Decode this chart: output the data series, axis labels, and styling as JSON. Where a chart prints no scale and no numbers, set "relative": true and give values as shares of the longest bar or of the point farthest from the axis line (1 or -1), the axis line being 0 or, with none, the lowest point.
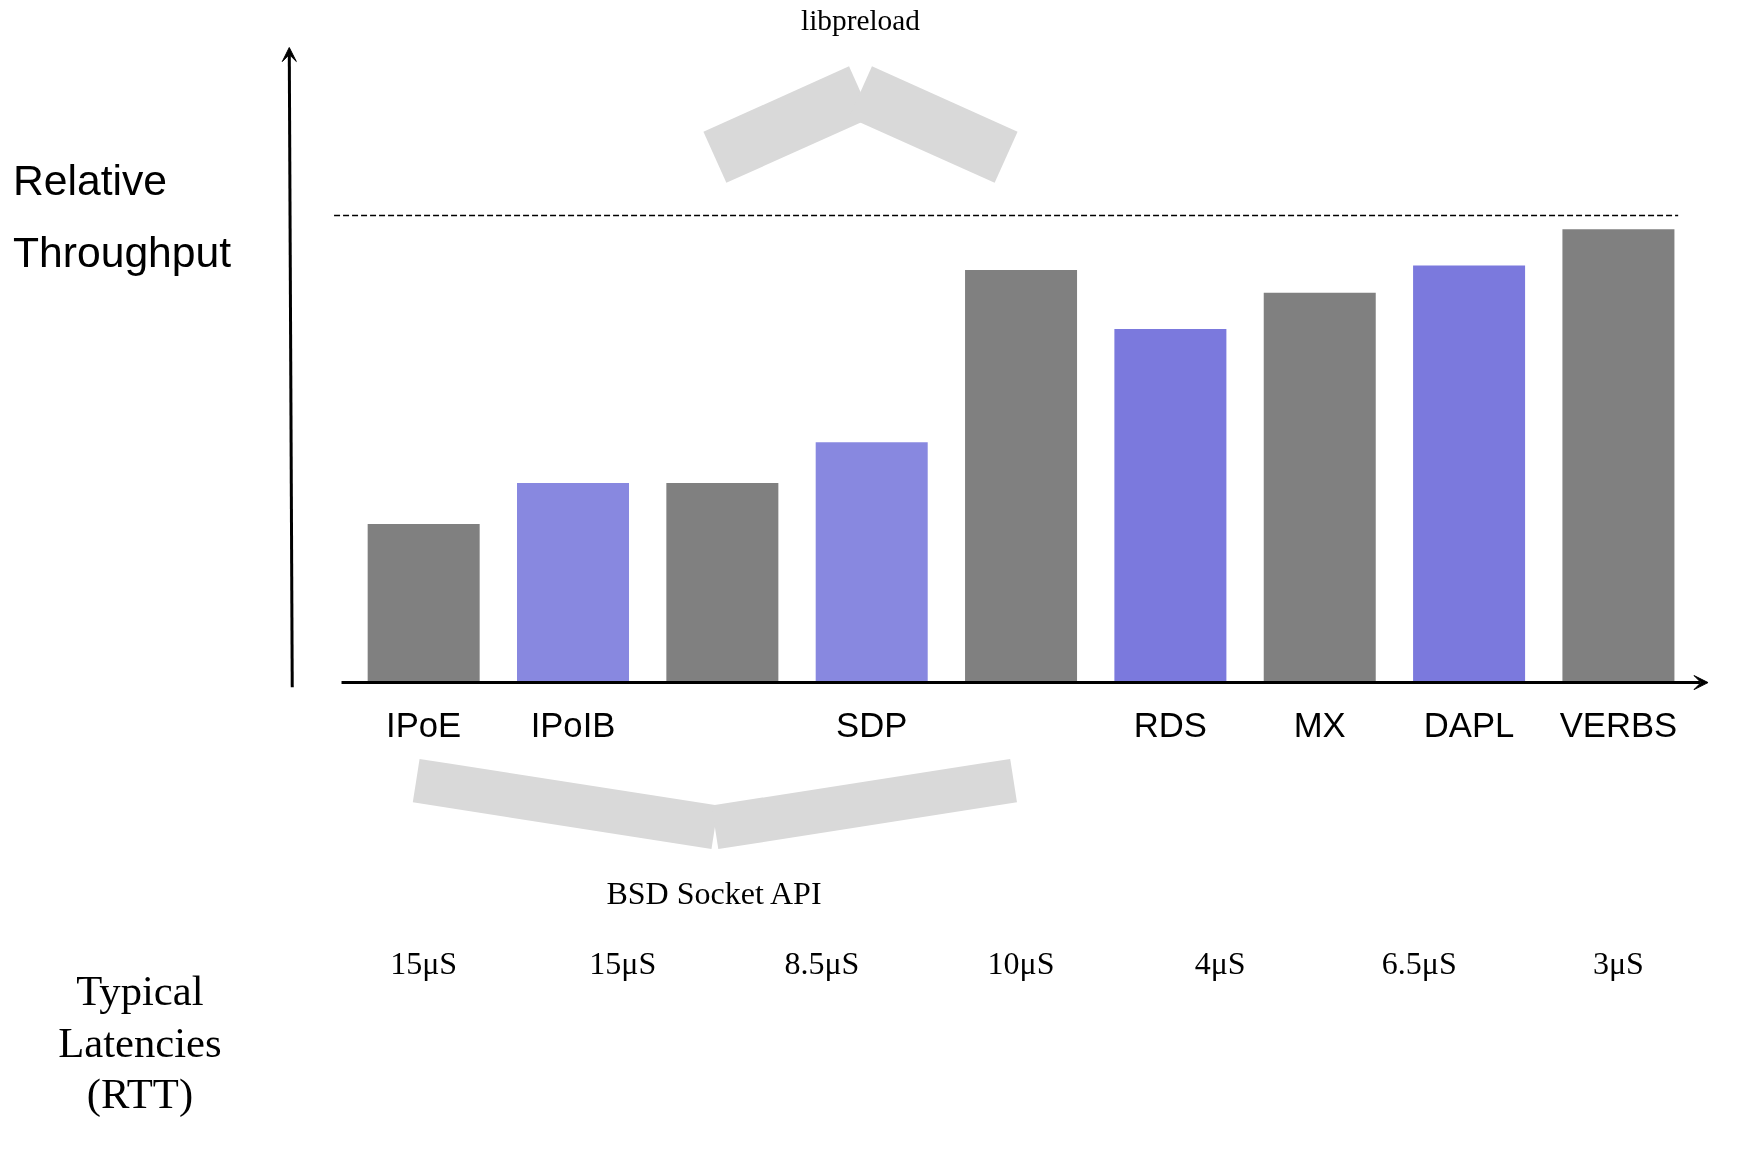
{
  "chart_data": {
    "type": "bar",
    "relative": true,
    "ylabel": "Relative Throughput",
    "categories": [
      "IPoE",
      "IPoIB",
      null,
      "SDP",
      null,
      "RDS",
      "MX",
      "DAPL",
      "VERBS"
    ],
    "values": [
      0.35,
      0.44,
      0.44,
      0.53,
      0.91,
      0.78,
      0.86,
      0.92,
      1
    ],
    "colors": [
      "#808080",
      "#8888e0",
      "#808080",
      "#8888e0",
      "#808080",
      "#7b79dd",
      "#808080",
      "#7b79dd",
      "#808080"
    ],
    "ref_lines": [
      {
        "axis": "y",
        "value": 1.03,
        "color": "#000000",
        "line_style": "dashed"
      }
    ],
    "annotations": [
      "libpreload",
      "BSD Socket API",
      "Typical Latencies (RTT)",
      "15μS",
      "15μS",
      "8.5μS",
      "10μS",
      "4μS",
      "6.5μS",
      "3μS"
    ],
    "grid": false
  }
}
